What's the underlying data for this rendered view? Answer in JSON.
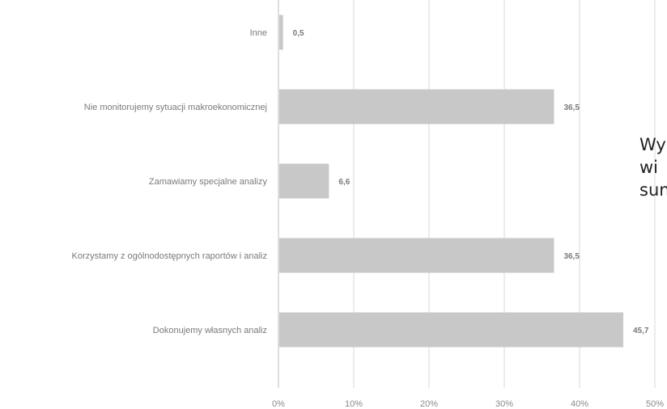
{
  "chart_data": {
    "type": "bar",
    "orientation": "horizontal",
    "categories": [
      "Inne",
      "Nie monitorujemy sytuacji makroekonomicznej",
      "Zamawiamy specjalne analizy",
      "Korzystamy z ogólnodostępnych raportów i analiz",
      "Dokonujemy własnych analiz"
    ],
    "values": [
      0.5,
      36.5,
      6.6,
      36.5,
      45.7
    ],
    "value_labels": [
      "0,5",
      "36,5",
      "6,6",
      "36,5",
      "45,7"
    ],
    "xlim": [
      0,
      50
    ],
    "x_ticks": [
      "0%",
      "10%",
      "20%",
      "30%",
      "40%",
      "50%"
    ],
    "grid": true,
    "bar_color": "#c8c8c8",
    "grid_color": "#d9d9d9"
  },
  "side_text": {
    "line1": "Wy",
    "line2": "wi",
    "line3": "sun"
  }
}
